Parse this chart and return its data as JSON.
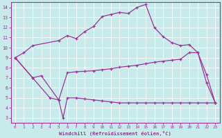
{
  "xlabel": "Windchill (Refroidissement éolien,°C)",
  "background_color": "#c8eaea",
  "line_color": "#993399",
  "grid_color": "#ffffff",
  "xlim": [
    -0.5,
    23.5
  ],
  "ylim": [
    2.5,
    14.5
  ],
  "xticks": [
    0,
    1,
    2,
    3,
    4,
    5,
    6,
    7,
    8,
    9,
    10,
    11,
    12,
    13,
    14,
    15,
    16,
    17,
    18,
    19,
    20,
    21,
    22,
    23
  ],
  "yticks": [
    3,
    4,
    5,
    6,
    7,
    8,
    9,
    10,
    11,
    12,
    13,
    14
  ],
  "line1": {
    "x": [
      0,
      1,
      2,
      5,
      6,
      7,
      8,
      9,
      10,
      11,
      12,
      13,
      14,
      15,
      16,
      17,
      18,
      19,
      20,
      21,
      22,
      23
    ],
    "y": [
      9.0,
      9.5,
      10.2,
      10.7,
      11.2,
      10.9,
      11.6,
      12.1,
      13.1,
      13.3,
      13.5,
      13.4,
      14.0,
      14.3,
      12.0,
      11.1,
      10.5,
      10.2,
      10.3,
      9.5,
      6.5,
      4.5
    ]
  },
  "line2": {
    "x": [
      0,
      2,
      3,
      5,
      6,
      7,
      8,
      9,
      10,
      11,
      12,
      13,
      14,
      15,
      16,
      17,
      18,
      19,
      20,
      21,
      22,
      23
    ],
    "y": [
      9.0,
      7.0,
      7.2,
      4.8,
      7.5,
      7.6,
      7.65,
      7.7,
      7.8,
      7.9,
      8.05,
      8.15,
      8.25,
      8.4,
      8.55,
      8.65,
      8.75,
      8.85,
      9.5,
      9.5,
      7.3,
      4.5
    ]
  },
  "line3": {
    "x": [
      0,
      2,
      4,
      5,
      5.5,
      6,
      7,
      8,
      9,
      10,
      11,
      12,
      13,
      14,
      15,
      16,
      17,
      18,
      19,
      20,
      21,
      22,
      23
    ],
    "y": [
      9.0,
      7.0,
      5.0,
      4.8,
      3.0,
      5.0,
      5.0,
      4.9,
      4.8,
      4.7,
      4.6,
      4.5,
      4.5,
      4.5,
      4.5,
      4.5,
      4.5,
      4.5,
      4.5,
      4.5,
      4.5,
      4.5,
      4.5
    ]
  }
}
